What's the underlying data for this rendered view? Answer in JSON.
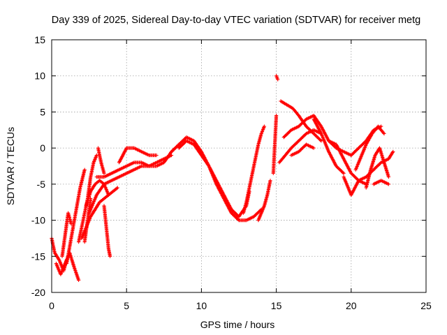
{
  "chart_data": {
    "type": "scatter",
    "title": "Day 339 of 2025, Sidereal Day-to-day VTEC variation (SDTVAR) for receiver metg",
    "xlabel": "GPS time / hours",
    "ylabel": "SDTVAR / TECUs",
    "xlim": [
      0,
      25
    ],
    "ylim": [
      -20,
      15
    ],
    "xticks": [
      0,
      5,
      10,
      15,
      20,
      25
    ],
    "yticks": [
      -20,
      -15,
      -10,
      -5,
      0,
      5,
      10,
      15
    ],
    "xtick_labels": [
      "0",
      "5",
      "10",
      "15",
      "20",
      "25"
    ],
    "ytick_labels": [
      "-20",
      "-15",
      "-10",
      "-5",
      "0",
      "5",
      "10",
      "15"
    ],
    "grid": true,
    "marker": "+",
    "color": "#ff0000",
    "series": [
      {
        "name": "t1",
        "x": [
          0.0,
          0.2,
          0.5,
          0.8,
          1.0
        ],
        "y": [
          -12.5,
          -14.5,
          -15.5,
          -17.0,
          -15.5
        ]
      },
      {
        "name": "t2",
        "x": [
          0.3,
          0.6,
          0.9,
          1.2,
          1.5,
          1.8
        ],
        "y": [
          -16.0,
          -17.5,
          -16.0,
          -14.5,
          -16.5,
          -18.3
        ]
      },
      {
        "name": "t3",
        "x": [
          0.7,
          0.9,
          1.1,
          1.3
        ],
        "y": [
          -15.0,
          -12.0,
          -9.0,
          -10.5
        ]
      },
      {
        "name": "t4",
        "x": [
          1.0,
          1.3,
          1.6,
          1.9,
          2.2
        ],
        "y": [
          -16.0,
          -12.5,
          -9.0,
          -5.5,
          -3.0
        ]
      },
      {
        "name": "t5",
        "x": [
          1.8,
          2.0,
          2.2,
          2.4,
          2.6,
          2.8,
          3.0
        ],
        "y": [
          -13.0,
          -11.0,
          -9.0,
          -7.0,
          -4.0,
          -2.0,
          -1.0
        ]
      },
      {
        "name": "t6",
        "x": [
          2.2,
          2.4,
          2.6
        ],
        "y": [
          -13.0,
          -10.0,
          -7.0
        ]
      },
      {
        "name": "t7",
        "x": [
          2.0,
          2.3,
          2.6,
          2.9,
          3.2,
          3.5,
          3.8,
          4.1,
          4.4
        ],
        "y": [
          -12.5,
          -11.0,
          -9.5,
          -8.5,
          -7.5,
          -7.0,
          -6.5,
          -6.0,
          -5.5
        ]
      },
      {
        "name": "t8",
        "x": [
          2.3,
          2.6,
          2.9,
          3.2,
          3.5,
          3.8
        ],
        "y": [
          -8.0,
          -6.0,
          -5.0,
          -4.5,
          -5.0,
          -6.5
        ]
      },
      {
        "name": "t9",
        "x": [
          3.1,
          3.3,
          3.5
        ],
        "y": [
          0.0,
          -2.0,
          -3.5
        ]
      },
      {
        "name": "t10",
        "x": [
          3.5,
          3.6,
          3.7,
          3.8,
          3.9
        ],
        "y": [
          -8.0,
          -10.0,
          -12.0,
          -14.0,
          -15.0
        ]
      },
      {
        "name": "t11",
        "x": [
          2.5,
          3.0,
          3.5,
          4.0,
          4.5,
          5.0,
          5.5,
          6.0,
          6.5,
          7.0,
          7.5,
          8.0
        ],
        "y": [
          -9.0,
          -6.5,
          -5.0,
          -4.5,
          -4.0,
          -3.5,
          -3.0,
          -2.5,
          -2.5,
          -2.0,
          -1.5,
          -1.0
        ]
      },
      {
        "name": "t12",
        "x": [
          3.0,
          3.5,
          4.0,
          4.5,
          5.0,
          5.5,
          6.0,
          6.5,
          7.0,
          7.5,
          8.0,
          8.5
        ],
        "y": [
          -4.0,
          -4.0,
          -3.5,
          -3.0,
          -2.5,
          -2.0,
          -2.0,
          -2.5,
          -2.5,
          -2.0,
          -0.5,
          0.5
        ]
      },
      {
        "name": "t13",
        "x": [
          4.5,
          5.0,
          5.5,
          6.0,
          6.5,
          7.0
        ],
        "y": [
          -2.0,
          0.0,
          0.0,
          -0.5,
          -1.0,
          -1.0
        ]
      },
      {
        "name": "t14",
        "x": [
          8.5,
          9.0,
          9.5,
          10.0,
          10.5,
          11.0,
          11.5,
          12.0,
          12.5,
          13.0,
          13.2
        ],
        "y": [
          0.0,
          1.0,
          0.5,
          -1.0,
          -2.5,
          -4.5,
          -6.5,
          -8.5,
          -9.5,
          -8.0,
          -6.0
        ]
      },
      {
        "name": "t15",
        "x": [
          8.0,
          8.5,
          9.0,
          9.5,
          10.0,
          10.5,
          11.0,
          11.5,
          12.0,
          12.5,
          13.0,
          13.5,
          14.0
        ],
        "y": [
          -0.5,
          0.5,
          1.5,
          1.0,
          -0.5,
          -2.5,
          -5.0,
          -7.0,
          -9.0,
          -10.0,
          -10.0,
          -9.5,
          -8.5
        ]
      },
      {
        "name": "t16",
        "x": [
          12.8,
          13.0,
          13.2,
          13.4,
          13.6,
          13.8,
          14.0,
          14.2
        ],
        "y": [
          -9.0,
          -7.5,
          -5.5,
          -3.5,
          -1.5,
          0.5,
          2.0,
          3.0
        ]
      },
      {
        "name": "t17",
        "x": [
          13.8,
          14.0,
          14.2,
          14.4,
          14.6
        ],
        "y": [
          -10.0,
          -9.0,
          -8.0,
          -6.5,
          -4.5
        ]
      },
      {
        "name": "t18",
        "x": [
          14.8,
          15.0
        ],
        "y": [
          -3.5,
          4.5
        ]
      },
      {
        "name": "t19",
        "x": [
          15.0,
          15.1
        ],
        "y": [
          10.0,
          9.5
        ]
      },
      {
        "name": "t20",
        "x": [
          15.3,
          15.7,
          16.1,
          16.5,
          17.0,
          17.5,
          18.0
        ],
        "y": [
          6.5,
          6.0,
          5.5,
          4.5,
          3.0,
          2.0,
          1.0
        ]
      },
      {
        "name": "t21",
        "x": [
          15.2,
          15.6,
          16.0,
          16.5,
          17.0,
          17.5,
          18.0
        ],
        "y": [
          -2.0,
          -1.0,
          0.0,
          1.0,
          2.0,
          2.5,
          2.0
        ]
      },
      {
        "name": "t22",
        "x": [
          15.5,
          16.0,
          16.5,
          17.0,
          17.5,
          18.0,
          18.5,
          19.0,
          19.5,
          20.0
        ],
        "y": [
          1.5,
          2.5,
          3.0,
          4.0,
          4.5,
          3.0,
          1.0,
          0.0,
          -0.5,
          -1.0
        ]
      },
      {
        "name": "t23",
        "x": [
          16.0,
          16.5,
          17.0,
          17.5
        ],
        "y": [
          -1.0,
          -0.5,
          0.5,
          0.0
        ]
      },
      {
        "name": "t24",
        "x": [
          17.5,
          18.0,
          18.5,
          19.0,
          19.5
        ],
        "y": [
          4.0,
          2.0,
          -0.5,
          -2.5,
          -3.5
        ]
      },
      {
        "name": "t25",
        "x": [
          18.5,
          19.0,
          19.5,
          20.0,
          20.5,
          21.0,
          21.5,
          22.0,
          22.5,
          22.8
        ],
        "y": [
          1.0,
          0.5,
          -1.5,
          -3.5,
          -4.5,
          -4.0,
          -3.0,
          -2.0,
          -1.5,
          -0.5
        ]
      },
      {
        "name": "t26",
        "x": [
          19.5,
          20.0,
          20.5,
          21.0
        ],
        "y": [
          -4.0,
          -6.5,
          -4.5,
          -5.0
        ]
      },
      {
        "name": "t27",
        "x": [
          20.0,
          20.5,
          21.0,
          21.5,
          22.0
        ],
        "y": [
          -1.0,
          0.0,
          1.0,
          2.5,
          3.0
        ]
      },
      {
        "name": "t28",
        "x": [
          20.3,
          20.6,
          21.0,
          21.4,
          21.8,
          22.2
        ],
        "y": [
          -3.0,
          -1.5,
          0.5,
          2.0,
          3.0,
          2.0
        ]
      },
      {
        "name": "t29",
        "x": [
          21.0,
          21.3,
          21.6,
          21.9,
          22.2,
          22.5
        ],
        "y": [
          -5.5,
          -3.0,
          -1.0,
          0.0,
          -2.0,
          -4.0
        ]
      },
      {
        "name": "t30",
        "x": [
          21.5,
          22.0,
          22.5
        ],
        "y": [
          -5.0,
          -4.5,
          -5.0
        ]
      }
    ]
  }
}
